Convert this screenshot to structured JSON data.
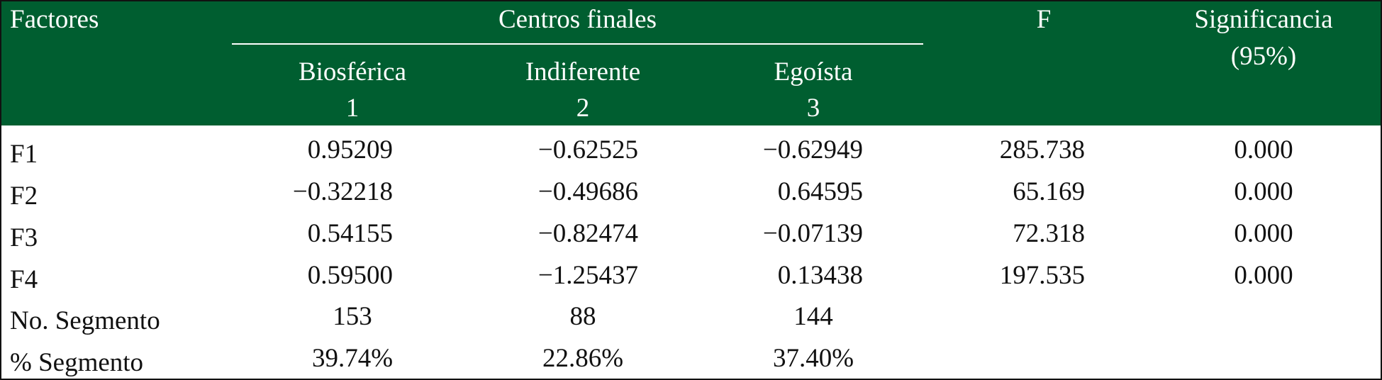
{
  "table": {
    "header": {
      "factors_label": "Factores",
      "group_label": "Centros finales",
      "f_label": "F",
      "significance_label": [
        "Significancia",
        "(95%)"
      ],
      "clusters": [
        {
          "name": "Biosférica",
          "number": "1"
        },
        {
          "name": "Indiferente",
          "number": "2"
        },
        {
          "name": "Egoísta",
          "number": "3"
        }
      ]
    },
    "rows": [
      {
        "label": "F1",
        "values": [
          "0.95209",
          "−0.62525",
          "−0.62949"
        ],
        "f": "285.738",
        "sig": "0.000"
      },
      {
        "label": "F2",
        "values": [
          "−0.32218",
          "−0.49686",
          "0.64595"
        ],
        "f": "65.169",
        "sig": "0.000"
      },
      {
        "label": "F3",
        "values": [
          "0.54155",
          "−0.82474",
          "−0.07139"
        ],
        "f": "72.318",
        "sig": "0.000"
      },
      {
        "label": "F4",
        "values": [
          "0.59500",
          "−1.25437",
          "0.13438"
        ],
        "f": "197.535",
        "sig": "0.000"
      },
      {
        "label": "No. Segmento",
        "values": [
          "153",
          "88",
          "144"
        ],
        "f": "",
        "sig": ""
      },
      {
        "label": "% Segmento",
        "values": [
          "39.74%",
          "22.86%",
          "37.40%"
        ],
        "f": "",
        "sig": ""
      }
    ]
  },
  "colors": {
    "header_bg": "#005e30",
    "header_text": "#ffffff",
    "text": "#111111"
  }
}
